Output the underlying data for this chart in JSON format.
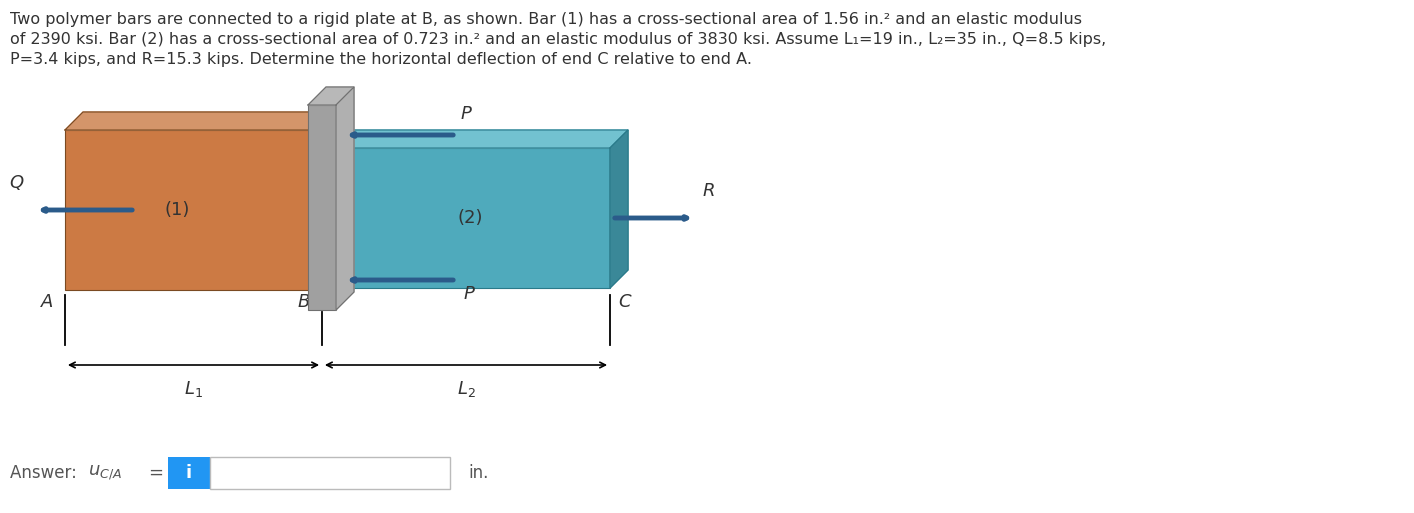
{
  "title_line1": "Two polymer bars are connected to a rigid plate at B, as shown. Bar (1) has a cross-sectional area of 1.56 in.² and an elastic modulus",
  "title_line2": "of 2390 ksi. Bar (2) has a cross-sectional area of 0.723 in.² and an elastic modulus of 3830 ksi. Assume L₁=19 in., L₂=35 in., Q=8.5 kips,",
  "title_line3": "P=3.4 kips, and R=15.3 kips. Determine the horizontal deflection of end C relative to end A.",
  "bar1_face": "#CC7A44",
  "bar1_top": "#D4956A",
  "bar1_side": "#A85E2A",
  "bar2_face": "#4FAABC",
  "bar2_top": "#72C2D0",
  "bar2_side": "#3A8898",
  "plate_face": "#A0A0A0",
  "plate_left": "#C0C0C0",
  "plate_top": "#B8B8B8",
  "arrow_color": "#2B5B8A",
  "text_color": "#333333",
  "answer_text_color": "#555555",
  "label_italic_color": "#333333",
  "answer_box_blue": "#2196F3",
  "dim_color": "#333333",
  "background": "#FFFFFF"
}
